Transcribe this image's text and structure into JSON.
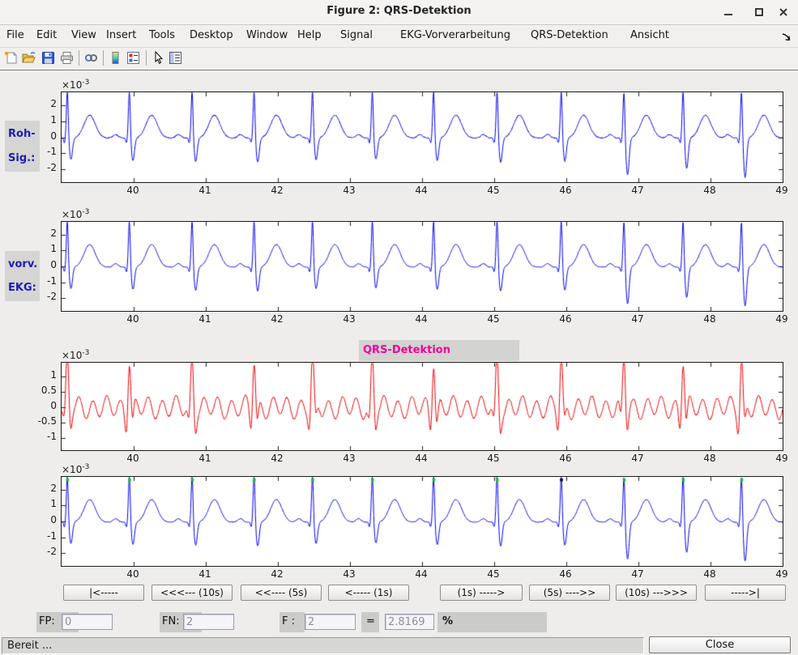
{
  "window": {
    "title": "Figure 2: QRS-Detektion",
    "controls": {
      "minimize": "minimize-icon",
      "maximize": "maximize-icon",
      "close": "close-icon"
    }
  },
  "menu": {
    "items": [
      "File",
      "Edit",
      "View",
      "Insert",
      "Tools",
      "Desktop",
      "Window",
      "Help",
      "Signal",
      "EKG-Vorverarbeitung",
      "QRS-Detektion",
      "Ansicht"
    ],
    "overflow_icon": "menu-overflow-arrow-icon"
  },
  "toolbar": {
    "icons": [
      "new-figure-icon",
      "open-file-icon",
      "save-figure-icon",
      "print-icon",
      "link-plot-icon",
      "insert-colorbar-icon",
      "insert-legend-icon",
      "edit-plot-arrow-icon",
      "plot-browser-icon"
    ]
  },
  "signal_labels": {
    "plot1_line1": "Roh-",
    "plot1_line2": "Sig.:",
    "plot2_line1": "vorv.",
    "plot2_line2": "EKG:",
    "plot3_title": "QRS-Detektion"
  },
  "nav": {
    "left": [
      "|<-----",
      "<<<--- (10s)",
      "<<---- (5s)",
      "<----- (1s)"
    ],
    "right": [
      "(1s) ----->",
      "(5s) ---->>",
      "(10s) --->>>",
      "----->|"
    ]
  },
  "stats": {
    "fp_label": "FP:",
    "fp_value": "0",
    "fn_label": "FN:",
    "fn_value": "2",
    "f_label": "F :",
    "f_value": "2",
    "equals_label": "=",
    "result_value": "2.8169",
    "percent_label": "%"
  },
  "statusbar": {
    "text": "Bereit ...",
    "close_label": "Close"
  },
  "colors": {
    "ecg_line": "#0000ee",
    "filtered_line": "#ee0000",
    "signal_label_text": "#1f1bb4",
    "plot3_title_text": "#f0009c",
    "detection_marker": "#00d400",
    "missed_marker": "#000000",
    "label_patch": "#d3d3d1",
    "figure_background": "#eeedeb"
  },
  "chart_data": [
    {
      "id": "roh-signal",
      "type": "line",
      "signal_kind": "ecg",
      "title": "",
      "xlabel": "",
      "ylabel": "",
      "xlim": [
        39,
        49
      ],
      "ylim_milli": [
        -2.8,
        2.8
      ],
      "xticks": [
        40,
        41,
        42,
        43,
        44,
        45,
        46,
        47,
        48,
        49
      ],
      "yticks_milli": [
        2,
        1,
        0,
        -1,
        -2
      ],
      "exponent": {
        "base": "×10",
        "power": "-3"
      },
      "line_color": "#0000ee",
      "r_peak_times": [
        39.08,
        39.94,
        40.81,
        41.67,
        42.48,
        43.31,
        44.16,
        45.04,
        45.93,
        46.8,
        47.62,
        48.43
      ],
      "s_depths_milli": [
        -1.35,
        -1.4,
        -1.45,
        -1.5,
        -1.35,
        -1.3,
        -1.4,
        -1.5,
        -1.45,
        -2.3,
        -1.9,
        -2.45
      ],
      "noise_milli": 0.06,
      "seed": 11
    },
    {
      "id": "vorverarbeitetes-ekg",
      "type": "line",
      "signal_kind": "ecg",
      "title": "",
      "xlabel": "",
      "ylabel": "",
      "xlim": [
        39,
        49
      ],
      "ylim_milli": [
        -2.8,
        2.8
      ],
      "xticks": [
        40,
        41,
        42,
        43,
        44,
        45,
        46,
        47,
        48,
        49
      ],
      "yticks_milli": [
        2,
        1,
        0,
        -1,
        -2
      ],
      "exponent": {
        "base": "×10",
        "power": "-3"
      },
      "line_color": "#0000ee",
      "r_peak_times": [
        39.08,
        39.94,
        40.81,
        41.67,
        42.48,
        43.31,
        44.16,
        45.04,
        45.93,
        46.8,
        47.62,
        48.43
      ],
      "s_depths_milli": [
        -1.35,
        -1.4,
        -1.45,
        -1.5,
        -1.35,
        -1.3,
        -1.4,
        -1.5,
        -1.45,
        -2.3,
        -1.9,
        -2.45
      ],
      "noise_milli": 0.04,
      "seed": 23
    },
    {
      "id": "qrs-detektion-bandpass",
      "type": "line",
      "signal_kind": "bandpass",
      "title": "QRS-Detektion",
      "xlabel": "",
      "ylabel": "",
      "xlim": [
        39,
        49
      ],
      "ylim_milli": [
        -1.38,
        1.45
      ],
      "xticks": [
        40,
        41,
        42,
        43,
        44,
        45,
        46,
        47,
        48,
        49
      ],
      "yticks_milli": [
        1,
        0.5,
        0,
        -0.5,
        -1
      ],
      "exponent": {
        "base": "×10",
        "power": "-3"
      },
      "line_color": "#ee0000",
      "r_peak_times": [
        39.08,
        39.94,
        40.81,
        41.67,
        42.48,
        43.31,
        44.16,
        45.04,
        45.93,
        46.8,
        47.62,
        48.43
      ],
      "noise_milli": 0.04,
      "seed": 37
    },
    {
      "id": "detektions-ergebnis",
      "type": "line",
      "signal_kind": "ecg",
      "title": "",
      "xlabel": "",
      "ylabel": "",
      "xlim": [
        39,
        49
      ],
      "ylim_milli": [
        -2.8,
        2.8
      ],
      "xticks": [
        40,
        41,
        42,
        43,
        44,
        45,
        46,
        47,
        48,
        49
      ],
      "yticks_milli": [
        2,
        1,
        0,
        -1,
        -2
      ],
      "exponent": {
        "base": "×10",
        "power": "-3"
      },
      "line_color": "#0000ee",
      "r_peak_times": [
        39.08,
        39.94,
        40.81,
        41.67,
        42.48,
        43.31,
        44.16,
        45.04,
        45.93,
        46.8,
        47.62,
        48.43
      ],
      "s_depths_milli": [
        -1.35,
        -1.4,
        -1.45,
        -1.5,
        -1.35,
        -1.3,
        -1.4,
        -1.5,
        -1.45,
        -2.3,
        -1.9,
        -2.45
      ],
      "noise_milli": 0.04,
      "seed": 51,
      "markers": [
        {
          "t": 39.08,
          "color": "#00d400"
        },
        {
          "t": 39.94,
          "color": "#00d400"
        },
        {
          "t": 40.81,
          "color": "#00d400"
        },
        {
          "t": 41.67,
          "color": "#00d400"
        },
        {
          "t": 42.48,
          "color": "#00d400"
        },
        {
          "t": 43.31,
          "color": "#00d400"
        },
        {
          "t": 44.16,
          "color": "#00d400"
        },
        {
          "t": 45.04,
          "color": "#00d400"
        },
        {
          "t": 45.93,
          "color": "#000000"
        },
        {
          "t": 46.8,
          "color": "#00d400"
        },
        {
          "t": 47.62,
          "color": "#00d400"
        },
        {
          "t": 48.43,
          "color": "#00d400"
        }
      ]
    }
  ]
}
